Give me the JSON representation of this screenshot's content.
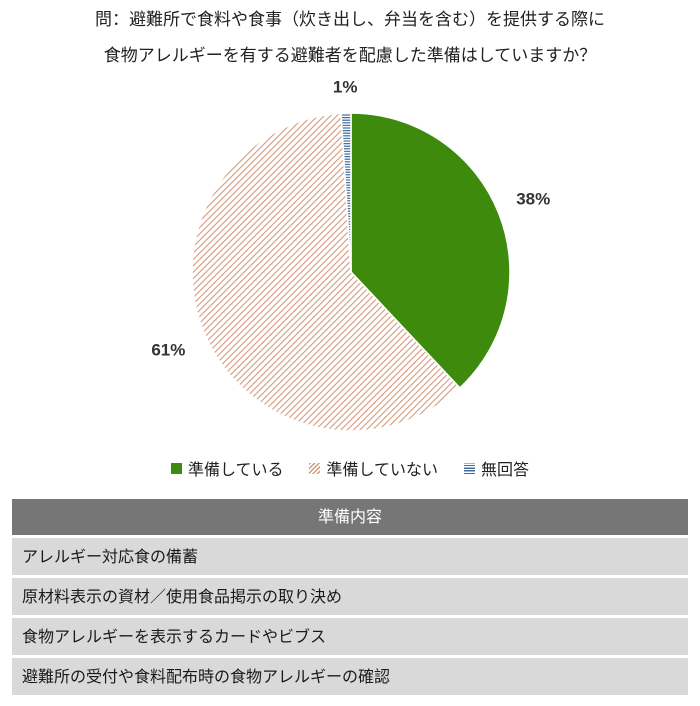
{
  "title": {
    "line1": "問：避難所で食料や食事（炊き出し、弁当を含む）を提供する際に",
    "line2": "食物アレルギーを有する避難者を配慮した準備はしていますか？"
  },
  "chart_data": {
    "type": "pie",
    "slices": [
      {
        "name": "準備している",
        "value": 38,
        "label": "38%",
        "color": "#3e8a0c",
        "pattern": "solid"
      },
      {
        "name": "準備していない",
        "value": 61,
        "label": "61%",
        "color": "#d59a7e",
        "pattern": "diagonal-hatch"
      },
      {
        "name": "無回答",
        "value": 1,
        "label": "1%",
        "color": "#3b6e9e",
        "pattern": "horizontal-lines"
      }
    ],
    "legend_position": "bottom"
  },
  "legend": {
    "items": [
      {
        "label": "準備している"
      },
      {
        "label": "準備していない"
      },
      {
        "label": "無回答"
      }
    ]
  },
  "table": {
    "header": "準備内容",
    "rows": [
      "アレルギー対応食の備蓄",
      "原材料表示の資材／使用食品掲示の取り決め",
      "食物アレルギーを表示するカードやビブス",
      "避難所の受付や食料配布時の食物アレルギーの確認"
    ]
  }
}
